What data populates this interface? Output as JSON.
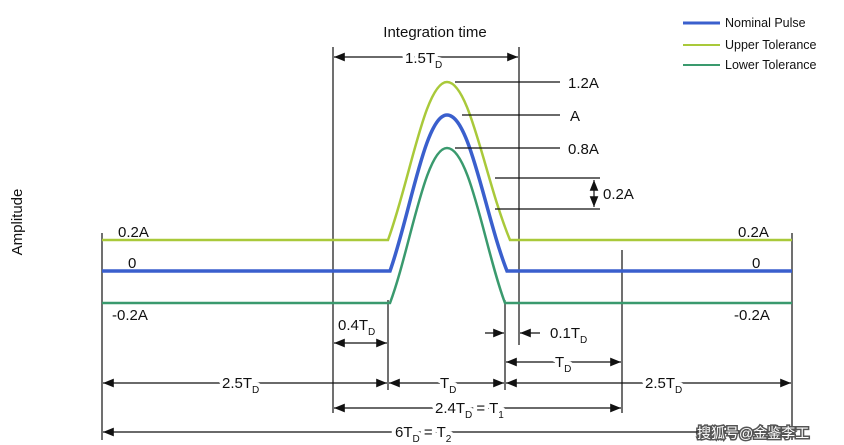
{
  "title": "Integration time",
  "y_axis_label": "Amplitude",
  "legend": [
    "Nominal Pulse",
    "Upper Tolerance",
    "Lower Tolerance"
  ],
  "amplitude_labels": {
    "peak_upper": "1.2A",
    "peak_nominal": "A",
    "peak_lower": "0.8A",
    "tolerance": "0.2A"
  },
  "left_levels": [
    "0.2A",
    "0",
    "-0.2A"
  ],
  "right_levels": [
    "0.2A",
    "0",
    "-0.2A"
  ],
  "time_labels": {
    "integration_width": [
      "1.5T",
      "D"
    ],
    "rise_offset": [
      "0.4T",
      "D"
    ],
    "fall_offset": [
      "0.1T",
      "D"
    ],
    "after_pulse": [
      "T",
      "D"
    ],
    "before": [
      "2.5T",
      "D"
    ],
    "pulse": [
      "T",
      "D"
    ],
    "after": [
      "2.5T",
      "D"
    ],
    "t1": [
      "2.4T",
      "D",
      " = T",
      "1"
    ],
    "t2": [
      "6T",
      "D",
      " = T",
      "2"
    ]
  },
  "watermark": "搜狐号@金鉴李工"
}
